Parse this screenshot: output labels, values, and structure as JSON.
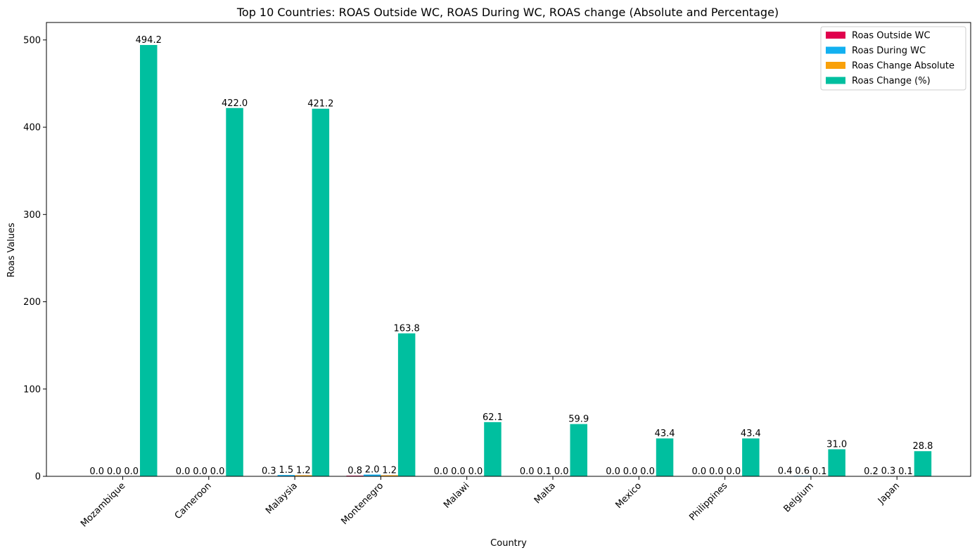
{
  "chart_data": {
    "type": "bar",
    "title": "Top 10 Countries: ROAS Outside WC, ROAS During WC, ROAS change (Absolute and Percentage)",
    "xlabel": "Country",
    "ylabel": "Roas Values",
    "ylim": [
      0,
      520
    ],
    "yticks": [
      0,
      100,
      200,
      300,
      400,
      500
    ],
    "grid": false,
    "legend_position": "top-right",
    "categories": [
      "Mozambique",
      "Cameroon",
      "Malaysia",
      "Montenegro",
      "Malawi",
      "Malta",
      "Mexico",
      "Philippines",
      "Belgium",
      "Japan"
    ],
    "series": [
      {
        "name": "Roas Outside WC",
        "color": "#e0004d",
        "values": [
          0.0,
          0.0,
          0.3,
          0.8,
          0.0,
          0.0,
          0.0,
          0.0,
          0.4,
          0.2
        ]
      },
      {
        "name": "Roas During WC",
        "color": "#12b0f0",
        "values": [
          0.0,
          0.0,
          1.5,
          2.0,
          0.0,
          0.1,
          0.0,
          0.0,
          0.6,
          0.3
        ]
      },
      {
        "name": "Roas Change Absolute",
        "color": "#f9a10a",
        "values": [
          0.0,
          0.0,
          1.2,
          1.2,
          0.0,
          0.0,
          0.0,
          0.0,
          0.1,
          0.1
        ]
      },
      {
        "name": "Roas Change (%)",
        "color": "#00bf9f",
        "values": [
          494.2,
          422.0,
          421.2,
          163.8,
          62.1,
          59.9,
          43.4,
          43.4,
          31.0,
          28.8
        ]
      }
    ]
  }
}
